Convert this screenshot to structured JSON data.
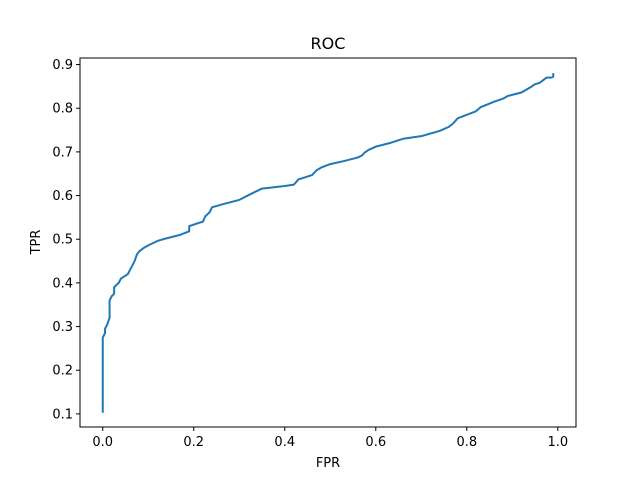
{
  "chart_data": {
    "type": "line",
    "title": "ROC",
    "xlabel": "FPR",
    "ylabel": "TPR",
    "xlim": [
      -0.05,
      1.04
    ],
    "ylim": [
      0.07,
      0.915
    ],
    "xticks": [
      0.0,
      0.2,
      0.4,
      0.6,
      0.8,
      1.0
    ],
    "xtick_labels": [
      "0.0",
      "0.2",
      "0.4",
      "0.6",
      "0.8",
      "1.0"
    ],
    "yticks": [
      0.1,
      0.2,
      0.3,
      0.4,
      0.5,
      0.6,
      0.7,
      0.8,
      0.9
    ],
    "ytick_labels": [
      "0.1",
      "0.2",
      "0.3",
      "0.4",
      "0.5",
      "0.6",
      "0.7",
      "0.8",
      "0.9"
    ],
    "grid": false,
    "series": [
      {
        "color": "#1f77b4",
        "x": [
          0.0,
          0.0,
          0.0,
          0.005,
          0.005,
          0.01,
          0.015,
          0.015,
          0.02,
          0.025,
          0.025,
          0.035,
          0.04,
          0.055,
          0.06,
          0.065,
          0.07,
          0.075,
          0.08,
          0.09,
          0.1,
          0.12,
          0.14,
          0.17,
          0.19,
          0.19,
          0.21,
          0.22,
          0.225,
          0.23,
          0.235,
          0.24,
          0.27,
          0.3,
          0.33,
          0.35,
          0.4,
          0.42,
          0.43,
          0.46,
          0.47,
          0.48,
          0.5,
          0.53,
          0.56,
          0.57,
          0.575,
          0.585,
          0.6,
          0.63,
          0.66,
          0.7,
          0.74,
          0.76,
          0.77,
          0.78,
          0.8,
          0.82,
          0.83,
          0.86,
          0.88,
          0.89,
          0.92,
          0.94,
          0.95,
          0.96,
          0.97,
          0.975,
          0.98,
          0.985,
          0.99,
          0.99
        ],
        "y": [
          0.105,
          0.25,
          0.275,
          0.285,
          0.295,
          0.305,
          0.32,
          0.36,
          0.37,
          0.375,
          0.39,
          0.4,
          0.41,
          0.42,
          0.43,
          0.44,
          0.45,
          0.465,
          0.472,
          0.48,
          0.486,
          0.496,
          0.502,
          0.51,
          0.518,
          0.53,
          0.537,
          0.54,
          0.552,
          0.557,
          0.562,
          0.573,
          0.582,
          0.59,
          0.606,
          0.616,
          0.622,
          0.625,
          0.637,
          0.647,
          0.658,
          0.664,
          0.672,
          0.679,
          0.687,
          0.692,
          0.698,
          0.705,
          0.712,
          0.72,
          0.73,
          0.736,
          0.748,
          0.757,
          0.765,
          0.777,
          0.785,
          0.793,
          0.802,
          0.815,
          0.822,
          0.828,
          0.836,
          0.848,
          0.855,
          0.858,
          0.866,
          0.87,
          0.87,
          0.87,
          0.872,
          0.878
        ]
      }
    ]
  }
}
